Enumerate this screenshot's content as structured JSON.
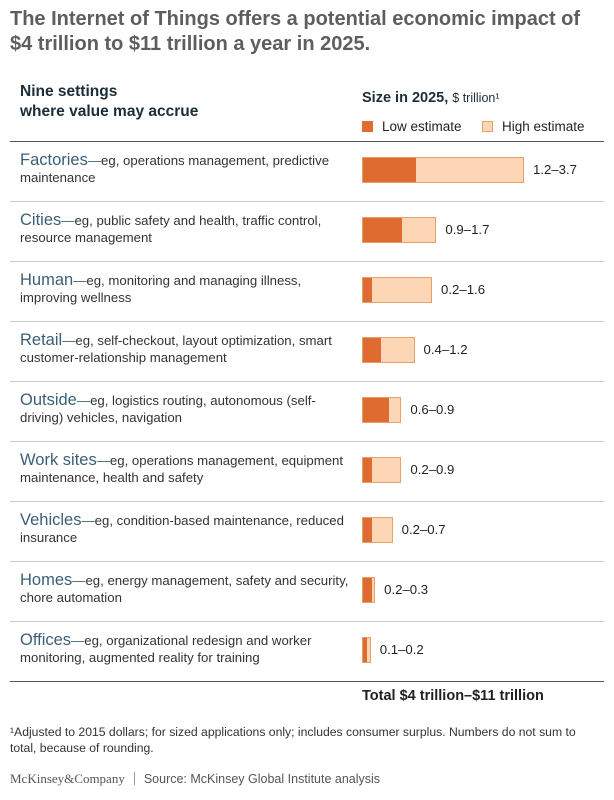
{
  "title": "The Internet of Things offers a potential economic impact of $4 trillion to $11 trillion a year in 2025.",
  "settings_header": {
    "line1": "Nine settings",
    "line2": "where value may accrue"
  },
  "size_header": {
    "label": "Size in 2025,",
    "unit": "$ trillion¹"
  },
  "legend": {
    "low": "Low estimate",
    "high": "High estimate"
  },
  "colors": {
    "low": "#e06b30",
    "high": "#fdd6b6",
    "setting_name": "#3b5f78"
  },
  "chart_data": {
    "type": "bar",
    "orientation": "horizontal",
    "stacked_range": true,
    "title": "Size in 2025, $ trillion",
    "unit": "$ trillion",
    "categories": [
      "Factories",
      "Cities",
      "Human",
      "Retail",
      "Outside",
      "Work sites",
      "Vehicles",
      "Homes",
      "Offices"
    ],
    "series": [
      {
        "name": "Low estimate",
        "values": [
          1.2,
          0.9,
          0.2,
          0.4,
          0.6,
          0.2,
          0.2,
          0.2,
          0.1
        ]
      },
      {
        "name": "High estimate",
        "values": [
          3.7,
          1.7,
          1.6,
          1.2,
          0.9,
          0.9,
          0.7,
          0.3,
          0.2
        ]
      }
    ],
    "xlim": [
      0,
      3.7
    ],
    "rows": [
      {
        "name": "Factories",
        "detail": "eg, operations management, predictive maintenance",
        "low": 1.2,
        "high": 3.7,
        "range_label": "1.2–3.7"
      },
      {
        "name": "Cities",
        "detail": "eg, public safety and health, traffic control, resource management",
        "low": 0.9,
        "high": 1.7,
        "range_label": "0.9–1.7"
      },
      {
        "name": "Human",
        "detail": "eg, monitoring and managing illness, improving wellness",
        "low": 0.2,
        "high": 1.6,
        "range_label": "0.2–1.6"
      },
      {
        "name": "Retail",
        "detail": "eg, self-checkout, layout optimization, smart customer-relationship management",
        "low": 0.4,
        "high": 1.2,
        "range_label": "0.4–1.2"
      },
      {
        "name": "Outside",
        "detail": "eg, logistics routing, autonomous (self-driving) vehicles, navigation",
        "low": 0.6,
        "high": 0.9,
        "range_label": "0.6–0.9"
      },
      {
        "name": "Work sites",
        "detail": "eg, operations management, equipment maintenance, health and safety",
        "low": 0.2,
        "high": 0.9,
        "range_label": "0.2–0.9"
      },
      {
        "name": "Vehicles",
        "detail": "eg, condition-based maintenance, reduced insurance",
        "low": 0.2,
        "high": 0.7,
        "range_label": "0.2–0.7"
      },
      {
        "name": "Homes",
        "detail": "eg, energy management, safety and security, chore automation",
        "low": 0.2,
        "high": 0.3,
        "range_label": "0.2–0.3"
      },
      {
        "name": "Offices",
        "detail": "eg, organizational redesign and worker monitoring, augmented reality for training",
        "low": 0.1,
        "high": 0.2,
        "range_label": "0.1–0.2"
      }
    ],
    "total": "Total  $4 trillion–$11 trillion"
  },
  "footnote": "¹Adjusted to 2015 dollars; for sized applications only; includes consumer surplus. Numbers do not sum to total, because of rounding.",
  "brand": "McKinsey&Company",
  "source": "Source: McKinsey Global Institute analysis"
}
